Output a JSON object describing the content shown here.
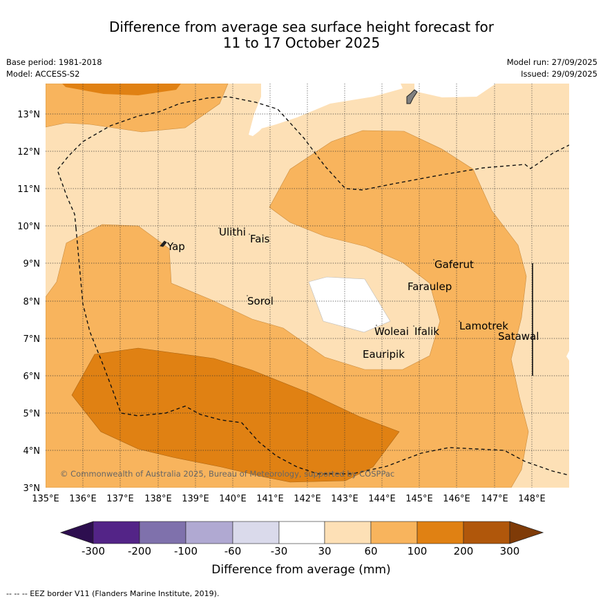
{
  "title_line1": "Difference from average sea surface height forecast for",
  "title_line2": "11 to 17 October 2025",
  "meta": {
    "base_period": "Base period: 1981-2018",
    "model": "Model: ACCESS-S2",
    "model_run": "Model run: 27/09/2025",
    "issued": "Issued: 29/09/2025"
  },
  "map": {
    "lat_labels": [
      "13°N",
      "12°N",
      "11°N",
      "10°N",
      "9°N",
      "8°N",
      "7°N",
      "6°N",
      "5°N",
      "4°N",
      "3°N"
    ],
    "lon_labels": [
      "135°E",
      "136°E",
      "137°E",
      "138°E",
      "139°E",
      "140°E",
      "141°E",
      "142°E",
      "143°E",
      "144°E",
      "145°E",
      "146°E",
      "147°E",
      "148°E"
    ],
    "places": [
      "Yap",
      "Ulithi",
      "Fais",
      "Gaferut",
      "Faraulep",
      "Sorol",
      "Woleai",
      "Ifalik",
      "Lamotrek",
      "Satawal",
      "Eauripik"
    ],
    "copyright": "© Commonwealth of Australia 2025, Bureau of Meteorology, supported by COSPPac",
    "colors": {
      "c30_60": "#fde0b6",
      "c60_100": "#f8b45d",
      "c100_200": "#e08113",
      "c200_300": "#b0570b",
      "neutral": "#ffffff",
      "land": "#808080"
    }
  },
  "colorbar": {
    "ticks": [
      "-300",
      "-200",
      "-100",
      "-60",
      "-30",
      "30",
      "60",
      "100",
      "200",
      "300"
    ],
    "label": "Difference from average (mm)",
    "colors": [
      "#2d0e4f",
      "#532487",
      "#7f71ac",
      "#b0a9d2",
      "#dadaeb",
      "#ffffff",
      "#fde0b6",
      "#f8b45d",
      "#e08113",
      "#b0570b",
      "#7f3b08"
    ]
  },
  "footnote": "--  --  -- EEZ border V11 (Flanders Marine Institute, 2019)."
}
